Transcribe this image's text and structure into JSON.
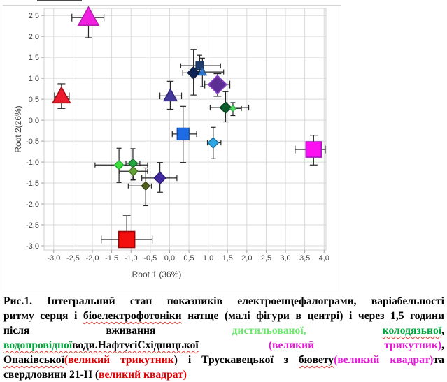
{
  "chart_data": {
    "type": "scatter",
    "xlabel": "Root 1 (36%)",
    "ylabel": "Root 2(26%)",
    "xlim": [
      -3.25,
      4.05
    ],
    "ylim": [
      -3.1,
      2.67
    ],
    "grid": true,
    "xticks": {
      "values": [
        -3.0,
        -2.5,
        -2.0,
        -1.5,
        -1.0,
        -0.5,
        0.0,
        0.5,
        1.0,
        1.5,
        2.0,
        2.5,
        3.0,
        3.5,
        4.0
      ],
      "labels": [
        "-3,0",
        "-2,5",
        "-2,0",
        "-1,5",
        "-1,0",
        "-0,5",
        "0,0",
        "0,5",
        "1,0",
        "1,5",
        "2,0",
        "2,5",
        "3,0",
        "3,5",
        "4,0"
      ]
    },
    "yticks": {
      "values": [
        2.5,
        2.0,
        1.5,
        1.0,
        0.5,
        0.0,
        -0.5,
        -1.0,
        -1.5,
        -2.0,
        -2.5,
        -3.0
      ],
      "labels": [
        "2,5",
        "2,0",
        "1,5",
        "1,0",
        "0,5",
        "0,0",
        "-0,5",
        "-1,0",
        "-1,5",
        "-2,0",
        "-2,5",
        "-3,0"
      ]
    },
    "colors": {
      "gridline": "#d9d9d9",
      "spine": "#d0d0d0",
      "tick_mark": "#a0a0a0",
      "errorbar": "#262626"
    },
    "points": [
      {
        "name": "magenta-triangle-large",
        "marker": "triangle",
        "size": 29,
        "fill": "#f11fe0",
        "stroke": "#b81fae",
        "x": -2.1,
        "y": 2.45,
        "exl": 0.43,
        "exr": 0.4,
        "eyu": 0,
        "eyd": 0.48
      },
      {
        "name": "red-triangle-large",
        "marker": "triangle",
        "size": 25,
        "fill": "#ec1c2e",
        "stroke": "#9e1018",
        "x": -2.8,
        "y": 0.57,
        "exl": 0.18,
        "exr": 0.2,
        "eyu": 0.3,
        "eyd": 0.29
      },
      {
        "name": "indigo-triangle",
        "marker": "triangle",
        "size": 19,
        "fill": "#45389b",
        "stroke": "#2f2470",
        "x": 0.02,
        "y": 0.58,
        "exl": 0.27,
        "exr": 0.29,
        "eyu": 0.35,
        "eyd": 0.32
      },
      {
        "name": "navy-diamond",
        "marker": "diamond",
        "size": 17,
        "fill": "#0f2355",
        "stroke": "#0a1838",
        "x": 0.62,
        "y": 1.13,
        "exl": 0.28,
        "exr": 0.28,
        "eyu": 0.56,
        "eyd": 0.53
      },
      {
        "name": "navy-square-small",
        "marker": "square",
        "size": 11,
        "fill": "#1e3c6e",
        "stroke": "#142c52",
        "x": 0.78,
        "y": 1.3,
        "exl": 0.49,
        "exr": 0.54,
        "eyu": 0.25,
        "eyd": 0.2
      },
      {
        "name": "blue-triangle-small",
        "marker": "triangle",
        "size": 12,
        "fill": "#2f74c8",
        "stroke": "#1f4e8c",
        "x": 0.85,
        "y": 1.15,
        "exl": 0.3,
        "exr": 0.55,
        "eyu": 0.33,
        "eyd": 0.35
      },
      {
        "name": "purple-diamond-large",
        "marker": "diamond",
        "size": 26,
        "fill": "#5c2d92",
        "stroke": "#8a3fc4",
        "x": 1.24,
        "y": 0.85,
        "exl": 0.33,
        "exr": 0.32,
        "eyu": 0.26,
        "eyd": 0.28
      },
      {
        "name": "dark-green-diamond",
        "marker": "diamond",
        "size": 16,
        "fill": "#0d5c2c",
        "stroke": "#083d1d",
        "x": 1.45,
        "y": 0.3,
        "exl": 0.4,
        "exr": 0.6,
        "eyu": 0.38,
        "eyd": 0.34
      },
      {
        "name": "light-green-diamond-small",
        "marker": "diamond",
        "size": 9,
        "fill": "#57dd67",
        "stroke": "#2fa33f",
        "x": 1.64,
        "y": 0.28,
        "exl": 0.1,
        "exr": 0.22,
        "eyu": 0.14,
        "eyd": 0.17
      },
      {
        "name": "blue-square",
        "marker": "square",
        "size": 17,
        "fill": "#1d6ce3",
        "stroke": "#174a9e",
        "x": 0.35,
        "y": -0.33,
        "exl": 0.28,
        "exr": 0.35,
        "eyu": 0.66,
        "eyd": 0.68
      },
      {
        "name": "cyan-diamond",
        "marker": "diamond",
        "size": 15,
        "fill": "#2ba5e2",
        "stroke": "#1b6fa0",
        "x": 1.13,
        "y": -0.54,
        "exl": 0.15,
        "exr": 0.2,
        "eyu": 0.37,
        "eyd": 0.38
      },
      {
        "name": "magenta-square-large",
        "marker": "square",
        "size": 22,
        "fill": "#fa10f0",
        "stroke": "#a517be",
        "x": 3.73,
        "y": -0.7,
        "exl": 0.48,
        "exr": 0.3,
        "eyu": 0.34,
        "eyd": 0.37
      },
      {
        "name": "bright-green-diamond",
        "marker": "diamond",
        "size": 13,
        "fill": "#3fe13f",
        "stroke": "#22a32e",
        "x": -1.31,
        "y": -1.07,
        "exl": 0.62,
        "exr": 0.74,
        "eyu": 0.4,
        "eyd": 0.42
      },
      {
        "name": "green-diamond",
        "marker": "diamond",
        "size": 13,
        "fill": "#20a23c",
        "stroke": "#116b27",
        "x": -0.95,
        "y": -1.03,
        "exl": 0.18,
        "exr": 0.18,
        "eyu": 0.35,
        "eyd": 0.4
      },
      {
        "name": "olive-diamond",
        "marker": "diamond",
        "size": 13,
        "fill": "#64a136",
        "stroke": "#3f6b20",
        "x": -0.94,
        "y": -1.22,
        "exl": 0.35,
        "exr": 0.37,
        "eyu": 0.22,
        "eyd": 0.2
      },
      {
        "name": "dark-olive-diamond",
        "marker": "diamond",
        "size": 12,
        "fill": "#4e611f",
        "stroke": "#333f14",
        "x": -0.62,
        "y": -1.57,
        "exl": 0.45,
        "exr": 0.15,
        "eyu": 0.43,
        "eyd": 0.47
      },
      {
        "name": "violet-diamond",
        "marker": "diamond",
        "size": 17,
        "fill": "#41289f",
        "stroke": "#2c1b72",
        "x": -0.25,
        "y": -1.38,
        "exl": 0.47,
        "exr": 0.44,
        "eyu": 0.37,
        "eyd": 0.34
      },
      {
        "name": "red-square-large",
        "marker": "square",
        "size": 23,
        "fill": "#f40f0f",
        "stroke": "#9a0505",
        "x": -1.11,
        "y": -2.85,
        "exl": 0.66,
        "exr": 0.66,
        "eyu": 0.57,
        "eyd": 0
      }
    ]
  },
  "caption": {
    "colors": {
      "light_green": "#6ce76c",
      "green": "#00a63c",
      "magenta": "#e61ad6",
      "red": "#e00000"
    },
    "lines": [
      {
        "last": false,
        "segments": [
          {
            "text": "Рис.1. Інтегральний стан показників електроенцефалограми, варіабельності"
          }
        ]
      },
      {
        "last": false,
        "segments": [
          {
            "text": "ритму серця і "
          },
          {
            "text": "біоелектрофотоніки",
            "wavy": true
          },
          {
            "text": " натще (малі фігури в центрі) і через 1,5 години"
          }
        ]
      },
      {
        "last": false,
        "segments": [
          {
            "text": "після вживання "
          },
          {
            "text": "дистильованої,",
            "color": "#6ce76c"
          },
          {
            "text": " "
          },
          {
            "text": "колодязьної",
            "color": "#00a63c",
            "wavy": true
          },
          {
            "text": ","
          }
        ]
      },
      {
        "last": false,
        "segments": [
          {
            "text": "водопровідної",
            "color": "#00a63c",
            "wavy": true
          },
          {
            "text": "води.НафтусіСхідницької",
            "wavy": true
          },
          {
            "text": " "
          },
          {
            "text": "(великий трикутник)",
            "color": "#e61ad6"
          },
          {
            "text": ","
          }
        ]
      },
      {
        "last": false,
        "segments": [
          {
            "text": "Опаківської",
            "wavy": true
          },
          {
            "text": "(великий трикутник",
            "color": "#e00000"
          },
          {
            "text": ") і Трускавецької з "
          },
          {
            "text": "бювету",
            "wavy": true
          },
          {
            "text": "(великий квадрат)",
            "color": "#e61ad6"
          },
          {
            "text": "та"
          }
        ]
      },
      {
        "last": true,
        "segments": [
          {
            "text": "свердловини 21-Н ("
          },
          {
            "text": "великий квадрат)",
            "color": "#e00000"
          }
        ]
      }
    ]
  }
}
